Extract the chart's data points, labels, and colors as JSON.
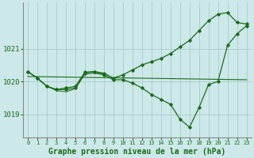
{
  "bg_color": "#cce8e8",
  "grid_color": "#aacccc",
  "line_color": "#1a6b1a",
  "marker_color": "#1a6b1a",
  "xlabel": "Graphe pression niveau de la mer (hPa)",
  "xlabel_fontsize": 7,
  "yticks": [
    1019,
    1020,
    1021
  ],
  "ylim": [
    1018.3,
    1022.4
  ],
  "xlim": [
    -0.5,
    23.5
  ],
  "xticks": [
    0,
    1,
    2,
    3,
    4,
    5,
    6,
    7,
    8,
    9,
    10,
    11,
    12,
    13,
    14,
    15,
    16,
    17,
    18,
    19,
    20,
    21,
    22,
    23
  ],
  "series": {
    "flat": {
      "x": [
        0,
        23
      ],
      "y": [
        1020.15,
        1020.05
      ],
      "has_markers": false,
      "linewidth": 0.8
    },
    "dip": {
      "x": [
        0,
        1,
        2,
        3,
        4,
        5,
        6,
        7,
        8,
        9,
        10,
        11,
        12,
        13,
        14,
        15,
        16,
        17,
        18,
        19,
        20,
        21,
        22,
        23
      ],
      "y": [
        1020.3,
        1020.1,
        1019.85,
        1019.75,
        1019.75,
        1019.8,
        1020.25,
        1020.3,
        1020.2,
        1020.05,
        1020.05,
        1019.95,
        1019.8,
        1019.6,
        1019.45,
        1019.3,
        1018.85,
        1018.6,
        1019.2,
        1019.9,
        1020.0,
        1021.1,
        1021.45,
        1021.7
      ],
      "has_markers": true,
      "linewidth": 0.9
    },
    "rise": {
      "x": [
        0,
        1,
        2,
        3,
        4,
        5,
        6,
        7,
        8,
        9,
        10,
        11,
        12,
        13,
        14,
        15,
        16,
        17,
        18,
        19,
        20,
        21,
        22,
        23
      ],
      "y": [
        1020.3,
        1020.1,
        1019.85,
        1019.75,
        1019.8,
        1019.85,
        1020.28,
        1020.3,
        1020.25,
        1020.1,
        1020.2,
        1020.35,
        1020.5,
        1020.6,
        1020.7,
        1020.85,
        1021.05,
        1021.25,
        1021.55,
        1021.85,
        1022.05,
        1022.1,
        1021.8,
        1021.75
      ],
      "has_markers": true,
      "linewidth": 0.9
    },
    "cluster": {
      "x": [
        0,
        1,
        2,
        3,
        4,
        5,
        6,
        7,
        8
      ],
      "y": [
        1020.3,
        1020.1,
        1019.85,
        1019.72,
        1019.68,
        1019.78,
        1020.22,
        1020.25,
        1020.2
      ],
      "has_markers": false,
      "linewidth": 0.7
    }
  }
}
